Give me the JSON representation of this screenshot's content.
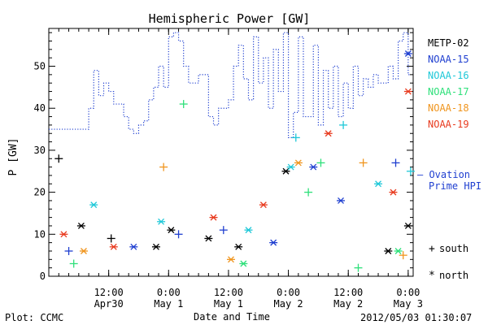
{
  "chart_data": {
    "type": "scatter",
    "title": "Hemispheric Power [GW]",
    "xlabel": "Date and Time",
    "ylabel": "P [GW]",
    "ylim": [
      0,
      59
    ],
    "xlim": [
      "2012-04-30T00:00",
      "2012-05-03T01:00"
    ],
    "grid": false,
    "x_ticks": [
      {
        "t": "2012-04-30T12:00",
        "time": "12:00",
        "date": "Apr30"
      },
      {
        "t": "2012-05-01T00:00",
        "time": "0:00",
        "date": "May 1"
      },
      {
        "t": "2012-05-01T12:00",
        "time": "12:00",
        "date": "May 1"
      },
      {
        "t": "2012-05-02T00:00",
        "time": "0:00",
        "date": "May 2"
      },
      {
        "t": "2012-05-02T12:00",
        "time": "12:00",
        "date": "May 2"
      },
      {
        "t": "2012-05-03T00:00",
        "time": "0:00",
        "date": "May 3"
      }
    ],
    "y_ticks": [
      0,
      10,
      20,
      30,
      40,
      50
    ],
    "legend": {
      "placement": "right",
      "satellites": [
        {
          "name": "METP-02",
          "color": "#000000"
        },
        {
          "name": "NOAA-15",
          "color": "#1f3fd0"
        },
        {
          "name": "NOAA-16",
          "color": "#1ec8d8"
        },
        {
          "name": "NOAA-17",
          "color": "#2ee07a"
        },
        {
          "name": "NOAA-18",
          "color": "#f0951e"
        },
        {
          "name": "NOAA-19",
          "color": "#e83a1e"
        }
      ],
      "ovation_label_1": "— Ovation",
      "ovation_label_2": "Prime HPI",
      "ovation_color": "#1f3fd0",
      "south_marker": "+",
      "south_label": "south",
      "north_marker": "*",
      "north_label": "north"
    },
    "ovation_series": {
      "name": "Ovation Prime HPI",
      "style": "dotted step",
      "points": [
        [
          "2012-04-30T00:00",
          35
        ],
        [
          "2012-04-30T08:00",
          40
        ],
        [
          "2012-04-30T09:00",
          49
        ],
        [
          "2012-04-30T10:00",
          43
        ],
        [
          "2012-04-30T11:00",
          46
        ],
        [
          "2012-04-30T12:00",
          44
        ],
        [
          "2012-04-30T13:00",
          41
        ],
        [
          "2012-04-30T15:00",
          38
        ],
        [
          "2012-04-30T16:00",
          35
        ],
        [
          "2012-04-30T17:00",
          34
        ],
        [
          "2012-04-30T18:00",
          36
        ],
        [
          "2012-04-30T19:00",
          37
        ],
        [
          "2012-04-30T20:00",
          42
        ],
        [
          "2012-04-30T21:00",
          45
        ],
        [
          "2012-04-30T22:00",
          50
        ],
        [
          "2012-04-30T23:00",
          45
        ],
        [
          "2012-05-01T00:00",
          57
        ],
        [
          "2012-05-01T01:00",
          58
        ],
        [
          "2012-05-01T02:00",
          56
        ],
        [
          "2012-05-01T03:00",
          50
        ],
        [
          "2012-05-01T04:00",
          46
        ],
        [
          "2012-05-01T06:00",
          48
        ],
        [
          "2012-05-01T08:00",
          38
        ],
        [
          "2012-05-01T09:00",
          36
        ],
        [
          "2012-05-01T10:00",
          40
        ],
        [
          "2012-05-01T12:00",
          42
        ],
        [
          "2012-05-01T13:00",
          50
        ],
        [
          "2012-05-01T14:00",
          55
        ],
        [
          "2012-05-01T15:00",
          47
        ],
        [
          "2012-05-01T16:00",
          42
        ],
        [
          "2012-05-01T17:00",
          57
        ],
        [
          "2012-05-01T18:00",
          46
        ],
        [
          "2012-05-01T19:00",
          52
        ],
        [
          "2012-05-01T20:00",
          40
        ],
        [
          "2012-05-01T21:00",
          54
        ],
        [
          "2012-05-01T22:00",
          44
        ],
        [
          "2012-05-01T23:00",
          58
        ],
        [
          "2012-05-02T00:00",
          33
        ],
        [
          "2012-05-02T01:00",
          39
        ],
        [
          "2012-05-02T02:00",
          57
        ],
        [
          "2012-05-02T03:00",
          38
        ],
        [
          "2012-05-02T05:00",
          55
        ],
        [
          "2012-05-02T06:00",
          36
        ],
        [
          "2012-05-02T07:00",
          49
        ],
        [
          "2012-05-02T08:00",
          40
        ],
        [
          "2012-05-02T09:00",
          50
        ],
        [
          "2012-05-02T10:00",
          38
        ],
        [
          "2012-05-02T11:00",
          46
        ],
        [
          "2012-05-02T12:00",
          40
        ],
        [
          "2012-05-02T13:00",
          50
        ],
        [
          "2012-05-02T14:00",
          43
        ],
        [
          "2012-05-02T15:00",
          47
        ],
        [
          "2012-05-02T16:00",
          45
        ],
        [
          "2012-05-02T17:00",
          48
        ],
        [
          "2012-05-02T18:00",
          46
        ],
        [
          "2012-05-02T19:00",
          46
        ],
        [
          "2012-05-02T20:00",
          50
        ],
        [
          "2012-05-02T21:00",
          47
        ],
        [
          "2012-05-02T22:00",
          56
        ],
        [
          "2012-05-02T23:00",
          58
        ],
        [
          "2012-05-03T00:00",
          48
        ],
        [
          "2012-05-03T00:30",
          48
        ]
      ]
    },
    "observations": {
      "note": "each point: [time, P (GW), satellite index into legend.satellites, hemisphere S/N]",
      "points": [
        [
          "2012-04-30T02:00",
          28,
          0,
          "S"
        ],
        [
          "2012-04-30T06:30",
          12,
          0,
          "N"
        ],
        [
          "2012-04-30T12:30",
          9,
          0,
          "S"
        ],
        [
          "2012-04-30T21:30",
          7,
          0,
          "N"
        ],
        [
          "2012-05-01T00:30",
          11,
          0,
          "N"
        ],
        [
          "2012-05-01T08:00",
          9,
          0,
          "N"
        ],
        [
          "2012-05-01T14:00",
          7,
          0,
          "N"
        ],
        [
          "2012-05-01T23:30",
          25,
          0,
          "N"
        ],
        [
          "2012-05-02T20:00",
          6,
          0,
          "N"
        ],
        [
          "2012-05-03T00:00",
          12,
          0,
          "N"
        ],
        [
          "2012-04-30T04:00",
          6,
          1,
          "S"
        ],
        [
          "2012-04-30T17:00",
          7,
          1,
          "N"
        ],
        [
          "2012-05-01T02:00",
          10,
          1,
          "S"
        ],
        [
          "2012-05-01T11:00",
          11,
          1,
          "S"
        ],
        [
          "2012-05-01T21:00",
          8,
          1,
          "N"
        ],
        [
          "2012-05-02T05:00",
          26,
          1,
          "N"
        ],
        [
          "2012-05-02T10:30",
          18,
          1,
          "N"
        ],
        [
          "2012-05-02T21:30",
          27,
          1,
          "S"
        ],
        [
          "2012-05-03T00:00",
          53,
          1,
          "N"
        ],
        [
          "2012-04-30T09:00",
          17,
          2,
          "N"
        ],
        [
          "2012-04-30T22:30",
          13,
          2,
          "N"
        ],
        [
          "2012-05-01T16:00",
          11,
          2,
          "N"
        ],
        [
          "2012-05-02T00:30",
          26,
          2,
          "N"
        ],
        [
          "2012-05-02T01:30",
          33,
          2,
          "S"
        ],
        [
          "2012-05-02T11:00",
          36,
          2,
          "S"
        ],
        [
          "2012-05-02T18:00",
          22,
          2,
          "N"
        ],
        [
          "2012-05-03T00:30",
          25,
          2,
          "S"
        ],
        [
          "2012-04-30T05:00",
          3,
          3,
          "S"
        ],
        [
          "2012-05-01T03:00",
          41,
          3,
          "S"
        ],
        [
          "2012-05-01T15:00",
          3,
          3,
          "N"
        ],
        [
          "2012-05-02T04:00",
          20,
          3,
          "S"
        ],
        [
          "2012-05-02T06:30",
          27,
          3,
          "S"
        ],
        [
          "2012-05-02T14:00",
          2,
          3,
          "S"
        ],
        [
          "2012-05-02T22:00",
          6,
          3,
          "N"
        ],
        [
          "2012-04-30T07:00",
          6,
          4,
          "N"
        ],
        [
          "2012-04-30T23:00",
          26,
          4,
          "S"
        ],
        [
          "2012-05-01T12:30",
          4,
          4,
          "N"
        ],
        [
          "2012-05-02T02:00",
          27,
          4,
          "N"
        ],
        [
          "2012-05-02T15:00",
          27,
          4,
          "S"
        ],
        [
          "2012-05-02T23:00",
          5,
          4,
          "S"
        ],
        [
          "2012-04-30T03:00",
          10,
          5,
          "N"
        ],
        [
          "2012-04-30T13:00",
          7,
          5,
          "N"
        ],
        [
          "2012-05-01T09:00",
          14,
          5,
          "N"
        ],
        [
          "2012-05-01T19:00",
          17,
          5,
          "N"
        ],
        [
          "2012-05-02T08:00",
          34,
          5,
          "N"
        ],
        [
          "2012-05-02T21:00",
          20,
          5,
          "N"
        ],
        [
          "2012-05-03T00:00",
          44,
          5,
          "N"
        ]
      ]
    }
  },
  "footer": {
    "plot_source": "Plot: CCMC",
    "timestamp": "2012/05/03 01:30:07"
  }
}
